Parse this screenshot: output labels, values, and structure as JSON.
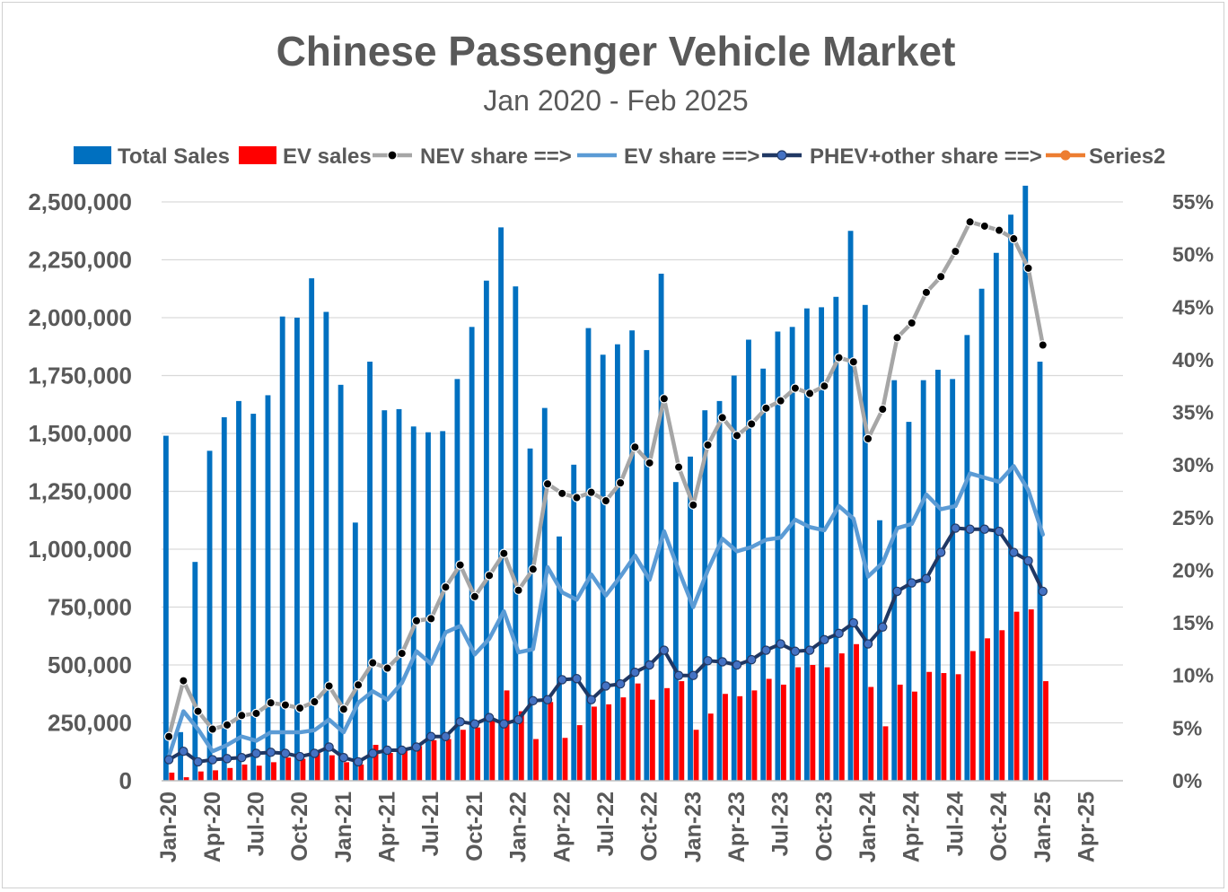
{
  "chart_data": {
    "type": "bar",
    "title": "Chinese Passenger Vehicle Market",
    "subtitle": "Jan 2020 - Feb 2025",
    "y_left": {
      "min": 0,
      "max": 2500000,
      "step": 250000,
      "tick_labels": [
        "0",
        "250,000",
        "500,000",
        "750,000",
        "1,000,000",
        "1,250,000",
        "1,500,000",
        "1,750,000",
        "2,000,000",
        "2,250,000",
        "2,500,000"
      ]
    },
    "y_right": {
      "min": 0,
      "max": 55,
      "step": 5,
      "tick_labels": [
        "0%",
        "5%",
        "10%",
        "15%",
        "20%",
        "25%",
        "30%",
        "35%",
        "40%",
        "45%",
        "50%",
        "55%"
      ]
    },
    "x_tick_labels": [
      "Jan-20",
      "Apr-20",
      "Jul-20",
      "Oct-20",
      "Jan-21",
      "Apr-21",
      "Jul-21",
      "Oct-21",
      "Jan-22",
      "Apr-22",
      "Jul-22",
      "Oct-22",
      "Jan-23",
      "Apr-23",
      "Jul-23",
      "Oct-23",
      "Jan-24",
      "Apr-24",
      "Jul-24",
      "Oct-24",
      "Jan-25",
      "Apr-25"
    ],
    "x_tick_month_index": [
      0,
      3,
      6,
      9,
      12,
      15,
      18,
      21,
      24,
      27,
      30,
      33,
      36,
      39,
      42,
      45,
      48,
      51,
      54,
      57,
      60,
      63
    ],
    "axis_month_count": 66,
    "legend": [
      "Total Sales",
      "EV sales",
      "NEV share ==>",
      "EV share ==>",
      "PHEV+other share ==>",
      "Series2"
    ],
    "colors": {
      "total": "#0070C0",
      "ev": "#FF0000",
      "nev": "#A6A6A6",
      "ev_share": "#5B9BD5",
      "phev": "#203864",
      "series2": "#ED7D31",
      "text": "#595959",
      "grid": "#D9D9D9",
      "marker_black": "#000000",
      "marker_phev": "#4472C4"
    },
    "series": [
      {
        "name": "Total Sales",
        "axis": "left",
        "kind": "bar",
        "values": [
          1490000,
          210000,
          945000,
          1425000,
          1570000,
          1640000,
          1585000,
          1665000,
          2005000,
          2000000,
          2170000,
          2025000,
          1710000,
          1115000,
          1810000,
          1600000,
          1605000,
          1530000,
          1505000,
          1510000,
          1735000,
          1960000,
          2160000,
          2390000,
          2135000,
          1435000,
          1610000,
          1055000,
          1365000,
          1955000,
          1840000,
          1885000,
          1945000,
          1860000,
          2190000,
          1290000,
          1400000,
          1600000,
          1640000,
          1750000,
          1905000,
          1780000,
          1940000,
          1960000,
          2040000,
          2045000,
          2090000,
          2375000,
          2055000,
          1125000,
          1730000,
          1550000,
          1730000,
          1775000,
          1735000,
          1925000,
          2125000,
          2280000,
          2445000,
          2570000,
          1810000
        ]
      },
      {
        "name": "EV sales",
        "axis": "left",
        "kind": "bar",
        "values": [
          35000,
          15000,
          40000,
          45000,
          55000,
          70000,
          65000,
          80000,
          100000,
          95000,
          120000,
          110000,
          80000,
          70000,
          155000,
          120000,
          130000,
          150000,
          175000,
          180000,
          220000,
          230000,
          270000,
          390000,
          300000,
          180000,
          340000,
          185000,
          240000,
          320000,
          330000,
          360000,
          420000,
          350000,
          400000,
          430000,
          220000,
          290000,
          375000,
          365000,
          390000,
          440000,
          415000,
          490000,
          500000,
          490000,
          550000,
          590000,
          405000,
          235000,
          415000,
          385000,
          470000,
          465000,
          460000,
          560000,
          615000,
          650000,
          730000,
          740000,
          430000
        ]
      },
      {
        "name": "NEV share ==>",
        "axis": "right",
        "kind": "line",
        "values": [
          4.2,
          9.5,
          6.6,
          4.9,
          5.3,
          6.2,
          6.4,
          7.4,
          7.2,
          6.9,
          7.5,
          9.0,
          6.8,
          9.1,
          11.2,
          10.7,
          12.1,
          15.2,
          15.4,
          18.4,
          20.5,
          17.5,
          19.5,
          21.6,
          18.1,
          20.1,
          28.2,
          27.3,
          26.9,
          27.4,
          26.6,
          28.3,
          31.7,
          30.2,
          36.3,
          29.8,
          26.2,
          31.9,
          34.5,
          32.8,
          33.9,
          35.4,
          36.1,
          37.3,
          36.8,
          37.5,
          40.2,
          39.8,
          32.5,
          35.3,
          42.1,
          43.5,
          46.4,
          47.9,
          50.3,
          53.1,
          52.7,
          52.3,
          51.5,
          48.7,
          41.4
        ]
      },
      {
        "name": "EV share ==>",
        "axis": "right",
        "kind": "line",
        "values": [
          2.3,
          6.6,
          4.9,
          2.8,
          3.4,
          4.2,
          3.8,
          4.6,
          4.6,
          4.6,
          4.8,
          5.8,
          4.6,
          7.4,
          8.5,
          7.7,
          9.3,
          12.3,
          11.1,
          14.1,
          14.7,
          12.0,
          13.5,
          16.1,
          12.2,
          12.5,
          20.3,
          17.9,
          17.2,
          19.6,
          17.6,
          19.4,
          21.4,
          19.1,
          23.7,
          20.0,
          16.5,
          20.0,
          23.0,
          21.8,
          22.2,
          22.9,
          23.1,
          24.8,
          24.1,
          23.8,
          26.1,
          24.9,
          19.4,
          20.7,
          24.0,
          24.4,
          27.2,
          25.8,
          26.1,
          29.2,
          28.8,
          28.4,
          29.9,
          27.6,
          23.4
        ]
      },
      {
        "name": "PHEV+other share ==>",
        "axis": "right",
        "kind": "line",
        "values": [
          2.0,
          2.8,
          1.8,
          2.0,
          2.1,
          2.2,
          2.6,
          2.7,
          2.6,
          2.3,
          2.6,
          3.2,
          2.2,
          1.8,
          2.6,
          2.9,
          2.9,
          3.2,
          4.2,
          4.2,
          5.6,
          5.4,
          6.0,
          5.4,
          5.8,
          7.6,
          7.7,
          9.6,
          9.7,
          7.7,
          9.0,
          9.2,
          10.3,
          11.0,
          12.4,
          10.0,
          10.0,
          11.4,
          11.3,
          11.0,
          11.5,
          12.4,
          13.0,
          12.3,
          12.4,
          13.4,
          14.0,
          15.0,
          13.0,
          14.6,
          18.0,
          18.8,
          19.2,
          21.7,
          24.0,
          23.9,
          23.9,
          23.7,
          21.7,
          20.9,
          18.0
        ]
      },
      {
        "name": "Series2",
        "axis": "right",
        "kind": "line",
        "values": []
      }
    ]
  }
}
